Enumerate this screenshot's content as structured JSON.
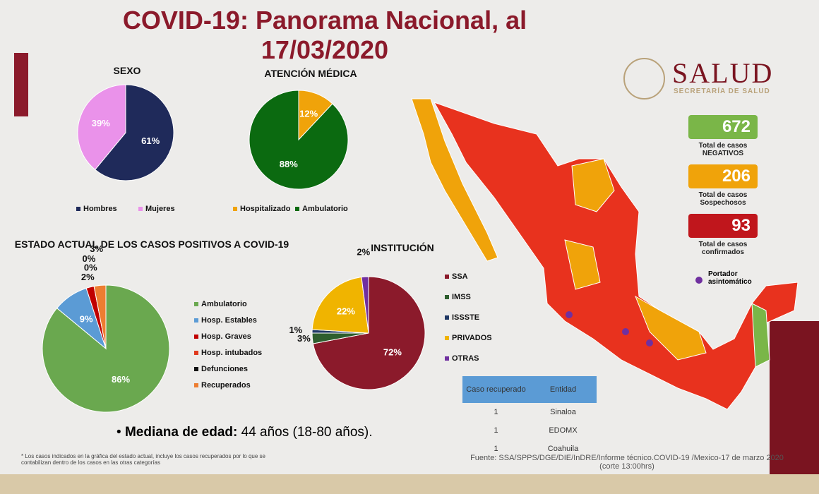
{
  "header": {
    "title": "COVID-19: Panorama Nacional, al 17/03/2020",
    "logo": {
      "name": "SALUD",
      "subtitle": "SECRETARÍA DE SALUD"
    }
  },
  "chart_data": [
    {
      "type": "pie",
      "title": "SEXO",
      "categories": [
        "Hombres",
        "Mujeres"
      ],
      "values": [
        61,
        39
      ],
      "value_labels": [
        "61%",
        "39%"
      ],
      "colors": [
        "#1f2a5a",
        "#ea92ea"
      ],
      "legend": "bottom"
    },
    {
      "type": "pie",
      "title": "ATENCIÓN MÉDICA",
      "categories": [
        "Hospitalizado",
        "Ambulatorio"
      ],
      "values": [
        12,
        88
      ],
      "value_labels": [
        "12%",
        "88%"
      ],
      "colors": [
        "#f0a30a",
        "#0b6a10"
      ],
      "legend": "bottom"
    },
    {
      "type": "pie",
      "title": "ESTADO ACTUAL DE LOS CASOS POSITIVOS A COVID-19",
      "categories": [
        "Ambulatorio",
        "Hosp. Estables",
        "Hosp. Graves",
        "Hosp. intubados",
        "Defunciones",
        "Recuperados"
      ],
      "values": [
        86,
        9,
        2,
        0,
        0,
        3
      ],
      "value_labels": [
        "86%",
        "9%",
        "2%",
        "0%",
        "0%",
        "3%"
      ],
      "colors": [
        "#6aa84f",
        "#5b9bd5",
        "#c00000",
        "#e03a1e",
        "#111111",
        "#ed7d31"
      ],
      "legend": "right"
    },
    {
      "type": "pie",
      "title": "INSTITUCIÓN",
      "categories": [
        "SSA",
        "IMSS",
        "ISSSTE",
        "PRIVADOS",
        "OTRAS"
      ],
      "values": [
        72,
        3,
        1,
        22,
        2
      ],
      "value_labels": [
        "72%",
        "3%",
        "1%",
        "22%",
        "2%"
      ],
      "colors": [
        "#8b1a2b",
        "#2e5e2e",
        "#1f3864",
        "#f0b400",
        "#7030a0"
      ],
      "legend": "right"
    }
  ],
  "stats": [
    {
      "value": 672,
      "label": "Total de casos NEGATIVOS",
      "color": "#7ab648"
    },
    {
      "value": 206,
      "label": "Total de casos Sospechosos",
      "color": "#f0a30a"
    },
    {
      "value": 93,
      "label": "Total de casos confirmados",
      "color": "#c0161c"
    }
  ],
  "map_legend": "Portador asintomático",
  "median": {
    "label": "Mediana de edad:",
    "value": "44 años (18-80 años)."
  },
  "table": {
    "columns": [
      "Caso recuperado",
      "Entidad"
    ],
    "rows": [
      [
        1,
        "Sinaloa"
      ],
      [
        1,
        "EDOMX"
      ],
      [
        1,
        "Coahuila"
      ]
    ]
  },
  "footnote": "* Los casos indicados en la gráfica del estado actual, incluye los casos recuperados por lo que se contabilizan dentro de los casos en las otras categorías",
  "source": "Fuente: SSA/SPPS/DGE/DIE/InDRE/Informe técnico.COVID-19 /Mexico-17 de marzo 2020",
  "source_note": "(corte 13:00hrs)"
}
